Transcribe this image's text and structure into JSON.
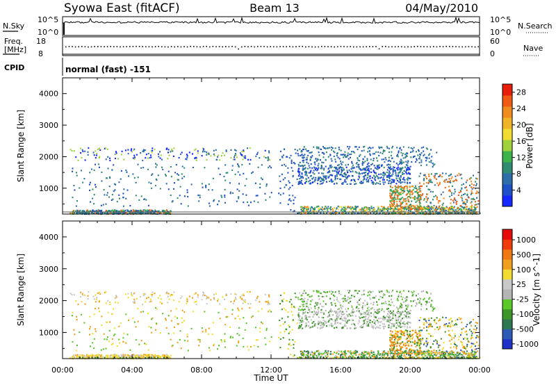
{
  "header": {
    "title": "Syowa East (fitACF)",
    "beam": "Beam 13",
    "date": "04/May/2010"
  },
  "aux_panels": {
    "nsky_label": "N.Sky",
    "nsearch_label": "N.Search",
    "noise_ticks": [
      "10^5",
      "10^0"
    ],
    "freq_label_line1": "Freq.",
    "freq_label_line2": "[MHz]",
    "freq_ticks": [
      "18",
      "8"
    ],
    "nave_label": "Nave",
    "nave_ticks": [
      "60",
      "0"
    ],
    "cpid_label": "CPID",
    "cpid_text": "normal (fast) -151"
  },
  "chart_data": [
    {
      "type": "heatmap",
      "name": "power",
      "ylabel": "Slant Range [km]",
      "xlabel": "",
      "y_ticks": [
        "1000",
        "2000",
        "3000",
        "4000"
      ],
      "ylim": [
        180,
        4500
      ],
      "xlim_hours": [
        0,
        24
      ],
      "colorbar": {
        "label": "Power [dB]",
        "ticks": [
          "4",
          "8",
          "12",
          "16",
          "20",
          "24",
          "28"
        ],
        "range": [
          0,
          30
        ],
        "colors": [
          "#1428ff",
          "#1e50c8",
          "#2d6eaa",
          "#2f8c73",
          "#3cb44b",
          "#a0d23c",
          "#f0dc32",
          "#f0b428",
          "#f08c1e",
          "#f05a14",
          "#e61e0a"
        ]
      }
    },
    {
      "type": "heatmap",
      "name": "velocity",
      "ylabel": "Slant Range [km]",
      "xlabel": "Time UT",
      "y_ticks": [
        "1000",
        "2000",
        "3000",
        "4000"
      ],
      "ylim": [
        180,
        4500
      ],
      "xlim_hours": [
        0,
        24
      ],
      "colorbar": {
        "label": "Velocity [m s^-1]",
        "ticks": [
          "1000",
          "500",
          "100",
          "25",
          "-25",
          "-100",
          "-500",
          "-1000"
        ],
        "colors": [
          "#1e32c8",
          "#2c5ab4",
          "#2d7850",
          "#3c9628",
          "#5ac828",
          "#b4b4b4",
          "#c8c8c8",
          "#f0dc32",
          "#f0a01e",
          "#f07814",
          "#f03c0a",
          "#e60a0a"
        ]
      },
      "x_ticks": [
        "00:00",
        "04:00",
        "08:00",
        "12:00",
        "16:00",
        "20:00",
        "00:00"
      ]
    }
  ]
}
